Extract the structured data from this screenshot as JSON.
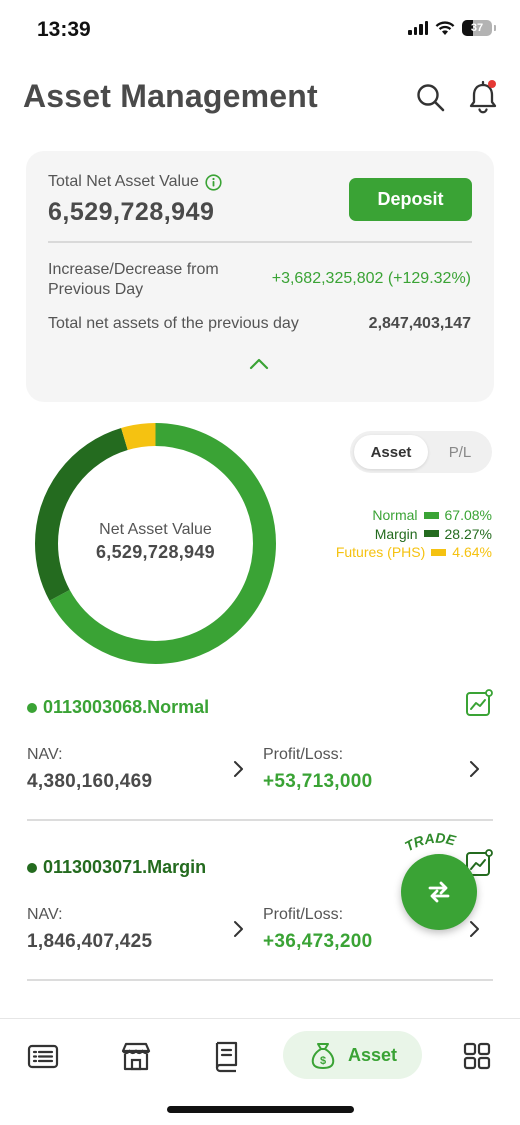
{
  "status_bar": {
    "time": "13:39",
    "battery": "37",
    "battery_level": 0.37
  },
  "header": {
    "title": "Asset Management",
    "search_icon": "search-icon",
    "bell_icon": "bell-icon"
  },
  "summary": {
    "nav_label": "Total Net Asset Value",
    "nav_value": "6,529,728,949",
    "deposit_label": "Deposit",
    "change_label_line1": "Increase/Decrease from",
    "change_label_line2": "Previous Day",
    "change_value": "+3,682,325,802 (+129.32%)",
    "prev_label": "Total net assets of the previous day",
    "prev_value": "2,847,403,147"
  },
  "donut": {
    "center_label": "Net Asset Value",
    "center_value": "6,529,728,949",
    "segments": [
      {
        "name": "Normal",
        "percent": 67.08,
        "color": "#3aa335"
      },
      {
        "name": "Margin",
        "percent": 28.27,
        "color": "#246b1f"
      },
      {
        "name": "Futures (PHS)",
        "percent": 4.64,
        "color": "#f5c211"
      }
    ]
  },
  "toggle": {
    "asset_label": "Asset",
    "pl_label": "P/L"
  },
  "legend": [
    {
      "label": "Normal",
      "value": "67.08%",
      "color": "#3aa335"
    },
    {
      "label": "Margin",
      "value": "28.27%",
      "color": "#246b1f"
    },
    {
      "label": "Futures (PHS)",
      "value": "4.64%",
      "color": "#f5c211"
    }
  ],
  "accounts": [
    {
      "name": "0113003068.Normal",
      "color": "#3aa335",
      "nav_label": "NAV:",
      "nav_value": "4,380,160,469",
      "pl_label": "Profit/Loss:",
      "pl_value": "+53,713,000"
    },
    {
      "name": "0113003071.Margin",
      "color": "#246b1f",
      "nav_label": "NAV:",
      "nav_value": "1,846,407,425",
      "pl_label": "Profit/Loss:",
      "pl_value": "+36,473,200"
    }
  ],
  "trade": {
    "label": "TRADE"
  },
  "bottom_nav": {
    "active_label": "Asset"
  },
  "colors": {
    "brand_green": "#3aa335",
    "dark_green": "#246b1f",
    "yellow": "#f5c211"
  }
}
